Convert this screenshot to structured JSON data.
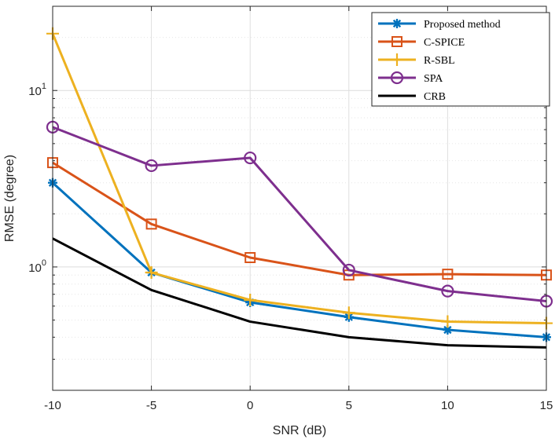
{
  "chart_data": {
    "type": "line",
    "title": "",
    "xlabel": "SNR (dB)",
    "ylabel": "RMSE (degree)",
    "yscale": "log",
    "xlim": [
      -10,
      15
    ],
    "ylim": [
      0.2,
      30
    ],
    "grid": true,
    "legend_position": "top-right",
    "x": [
      -10,
      -5,
      0,
      5,
      10,
      15
    ],
    "x_tick_labels": [
      "-10",
      "-5",
      "0",
      "5",
      "10",
      "15"
    ],
    "y_ticks": [
      {
        "value": 1,
        "base": "10",
        "exp": "0"
      },
      {
        "value": 10,
        "base": "10",
        "exp": "1"
      }
    ],
    "series": [
      {
        "name": "Proposed method",
        "color": "#0072BD",
        "marker": "asterisk",
        "values": [
          3.0,
          0.93,
          0.63,
          0.52,
          0.44,
          0.4
        ]
      },
      {
        "name": "C-SPICE",
        "color": "#D95319",
        "marker": "square",
        "values": [
          3.9,
          1.75,
          1.13,
          0.9,
          0.91,
          0.9
        ]
      },
      {
        "name": "R-SBL",
        "color": "#EDB120",
        "marker": "plus",
        "values": [
          21.0,
          0.93,
          0.65,
          0.55,
          0.49,
          0.48
        ]
      },
      {
        "name": "SPA",
        "color": "#7E2F8E",
        "marker": "circle",
        "values": [
          6.2,
          3.75,
          4.15,
          0.96,
          0.73,
          0.64
        ]
      },
      {
        "name": "CRB",
        "color": "#000000",
        "marker": "none",
        "values": [
          1.45,
          0.74,
          0.49,
          0.4,
          0.36,
          0.35
        ]
      }
    ]
  }
}
